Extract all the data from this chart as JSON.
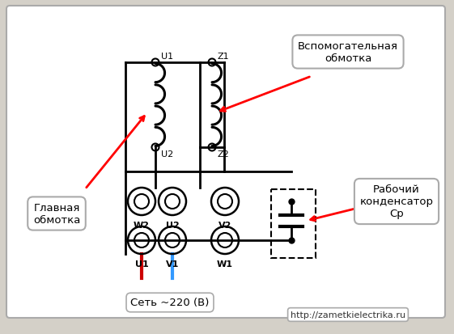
{
  "bg_color": "#d4d0c8",
  "white": "#ffffff",
  "black": "#000000",
  "red": "#cc0000",
  "blue": "#3399ff",
  "label_aux": "Вспомогательная\nобмотка",
  "label_cap": "Рабочий\nконденсатор\nСр",
  "label_main": "Главная\nобмотка",
  "label_net": "Сеть ~220 (В)",
  "label_url": "http://zametkielectrika.ru",
  "fig_w": 5.61,
  "fig_h": 4.14,
  "dpi": 100
}
